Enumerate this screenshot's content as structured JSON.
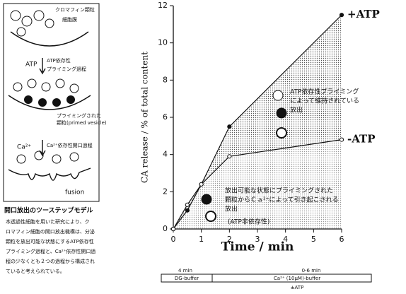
{
  "diagram": {
    "labels": {
      "granule": "クロマフィン顆粒",
      "membrane": "細胞膜",
      "atp": "ATP",
      "atp_step": [
        "ATP依存性",
        "プライミング過程"
      ],
      "primed": [
        "プライミングされた",
        "顆粒(primed vesicle)"
      ],
      "ca": "Ca²⁺",
      "ca_step": "Ca²⁺依存性開口過程",
      "fusion": "fusion"
    }
  },
  "caption": {
    "title": "開口放出のツーステップモデル",
    "lines": [
      "本透過性細胞を用いた研究により、ク",
      "ロマフィン細胞の開口放出機構は、分泌",
      "顆粒を放出可能な状態にするATP依存性",
      "プライミング過程と、Ca²⁺依存性開口過",
      "程の少なくとも２つの過程から構成され",
      "ていると考えられている。"
    ]
  },
  "chart_data": {
    "type": "line",
    "x_label": "Time / min",
    "y_label": "CA release / % of total content",
    "x": [
      0,
      0.5,
      1,
      2,
      6
    ],
    "series": [
      {
        "name": "+ATP",
        "color": "#111111",
        "filled": true,
        "values": [
          0,
          1.0,
          2.4,
          5.5,
          11.5
        ]
      },
      {
        "name": "-ATP",
        "color": "#111111",
        "filled": false,
        "values": [
          0,
          1.3,
          2.4,
          3.9,
          4.8
        ]
      }
    ],
    "xlim": [
      0,
      6
    ],
    "xticks": [
      0,
      1,
      2,
      3,
      4,
      5,
      6
    ],
    "ylim": [
      0,
      12
    ],
    "yticks": [
      0,
      2,
      4,
      6,
      8,
      10,
      12
    ],
    "annotations": {
      "upper": [
        "ATP依存性プライミング",
        "によって維持されている",
        "放出"
      ],
      "lower": [
        "放出可能な状態にプライミングされた",
        "顆粒からＣａ²⁺によって引き起こされる",
        "放出"
      ],
      "lower_note": "(ATP非依存性)"
    },
    "protocol": {
      "pre_time": "4 min",
      "pre_buffer": "DG-buffer",
      "main_time": "0-6 min",
      "main_buffer": "Ca²⁺ (10μM)-buffer",
      "condition": "±ATP"
    }
  }
}
